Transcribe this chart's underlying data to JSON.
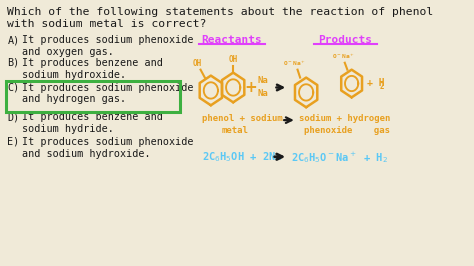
{
  "bg_color": "#f0ead8",
  "text_color": "#1a1a1a",
  "orange": "#e8a020",
  "blue": "#5bc8f5",
  "magenta": "#e040fb",
  "green": "#3db040",
  "title_line1": "Which of the following statements about the reaction of phenol",
  "title_line2": "with sodium metal is correct?",
  "options": [
    {
      "label": "A)",
      "line1": "It produces sodium phenoxide",
      "line2": "and oxygen gas.",
      "correct": false
    },
    {
      "label": "B)",
      "line1": "It produces benzene and",
      "line2": "sodium hydroxide.",
      "correct": false
    },
    {
      "label": "C)",
      "line1": "It produces sodium phenoxide",
      "line2": "and hydrogen gas.",
      "correct": true
    },
    {
      "label": "D)",
      "line1": "It produces benzene and",
      "line2": "sodium hydride.",
      "correct": false
    },
    {
      "label": "E)",
      "line1": "It produces sodium phenoxide",
      "line2": "and sodium hydroxide.",
      "correct": false
    }
  ],
  "reactants_label": "Reactants",
  "products_label": "Products",
  "title_fontsize": 8.2,
  "option_fontsize": 7.3,
  "header_fontsize": 8.0
}
